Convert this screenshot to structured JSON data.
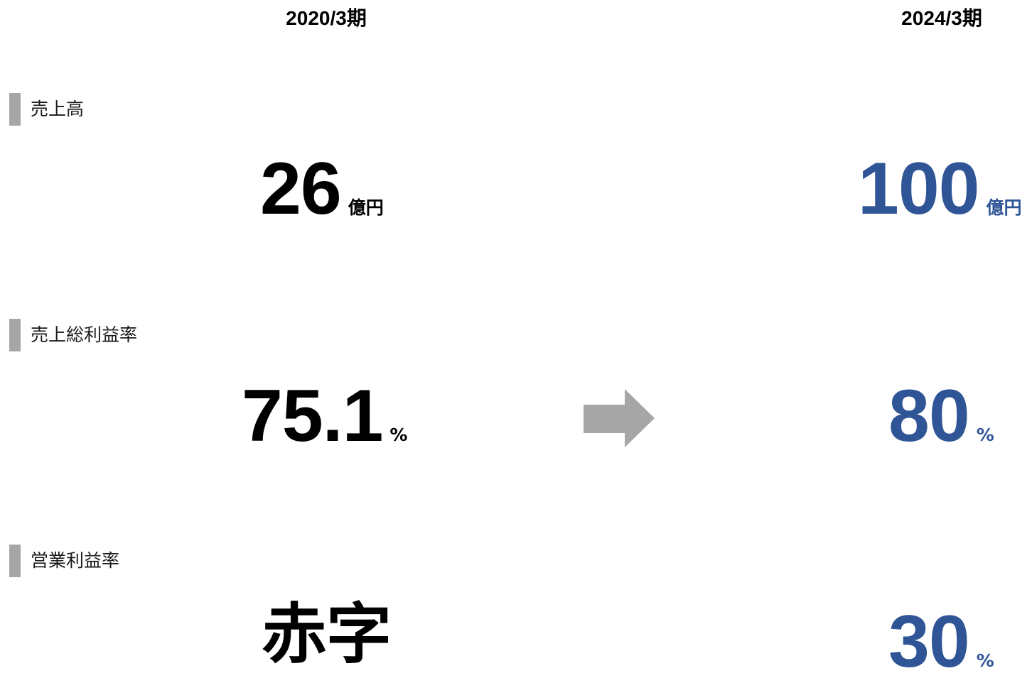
{
  "header": {
    "period_before": "2020/3期",
    "period_after": "2024/3期"
  },
  "colors": {
    "accent": "#2f5597",
    "label_bar": "#a6a6a6",
    "arrow": "#a6a6a6"
  },
  "icons": {
    "transition": "right-arrow-icon"
  },
  "metrics": [
    {
      "label": "売上高",
      "before": {
        "value": "26",
        "unit": "億円"
      },
      "after": {
        "value": "100",
        "unit": "億円"
      }
    },
    {
      "label": "売上総利益率",
      "before": {
        "value": "75.1",
        "unit": "%"
      },
      "after": {
        "value": "80",
        "unit": "%"
      }
    },
    {
      "label": "営業利益率",
      "before": {
        "value": "赤字",
        "unit": ""
      },
      "after": {
        "value": "30",
        "unit": "%"
      }
    }
  ]
}
